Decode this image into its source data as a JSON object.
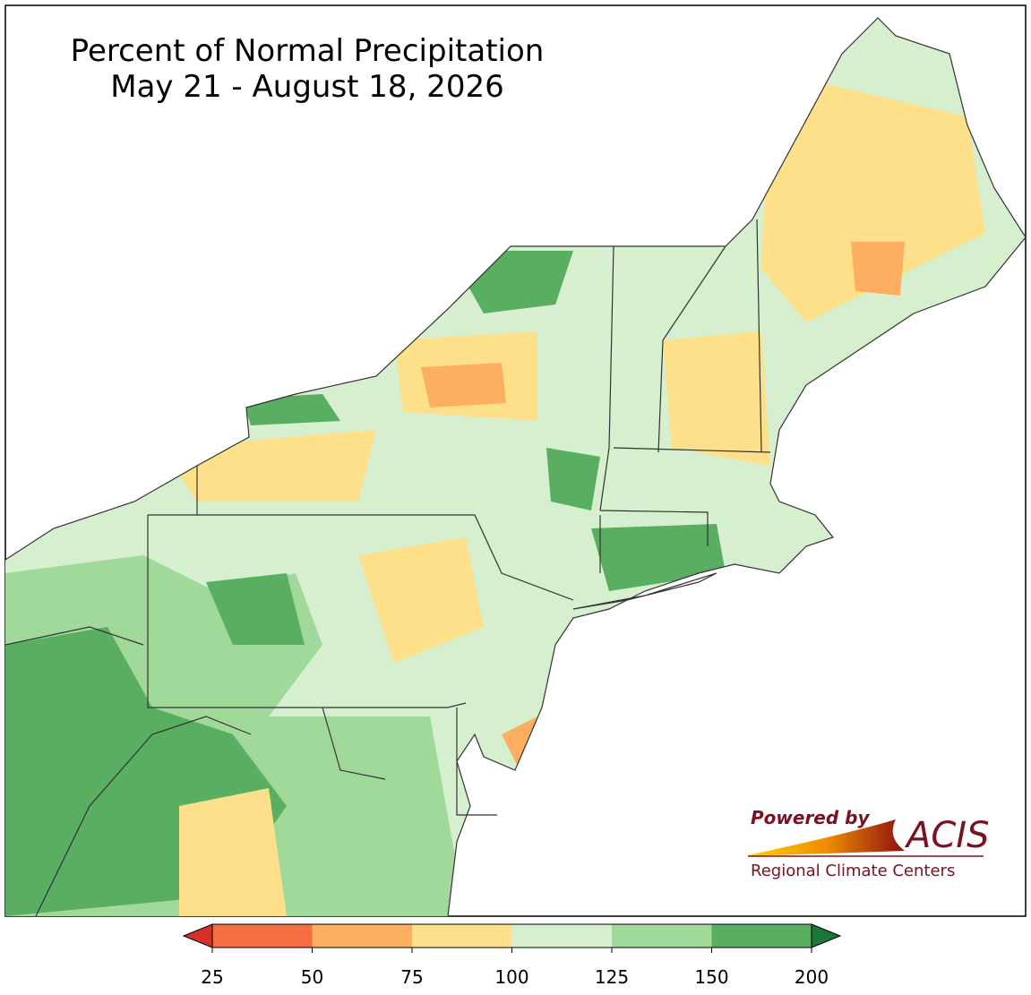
{
  "map": {
    "title": [
      "Percent of Normal Precipitation",
      "May 21 - August 18, 2026"
    ]
  },
  "legend": {
    "ticks": [
      25,
      50,
      75,
      100,
      125,
      150,
      200
    ],
    "colors": [
      "#f46d43",
      "#fdae61",
      "#fee08b",
      "#d5efcf",
      "#a1d99b",
      "#5aae61"
    ],
    "under_color": "#d73027",
    "over_color": "#1b7837"
  },
  "logo": {
    "powered_by": "Powered by",
    "brand": "ACIS",
    "subtitle": "Regional Climate Centers"
  }
}
